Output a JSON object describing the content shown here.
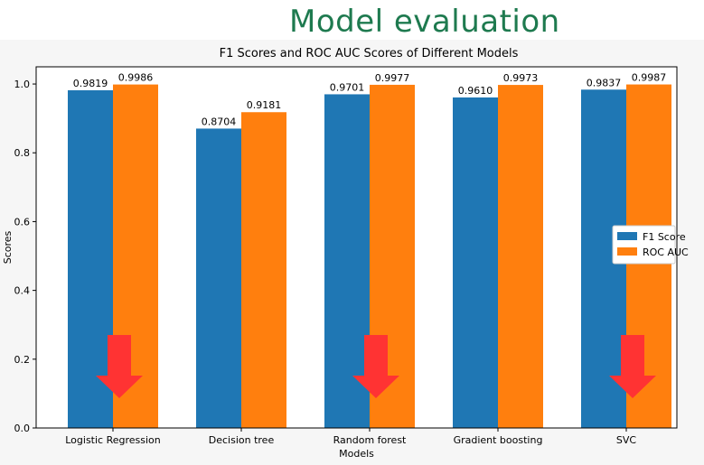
{
  "slide": {
    "title": "Model evaluation"
  },
  "colors": {
    "f1": "#1f77b4",
    "roc": "#ff7f0e",
    "arrow": "#ff3333",
    "title": "#1e7a4f"
  },
  "annotations": {
    "arrows_at_categories": [
      "Logistic Regression",
      "Random forest",
      "SVC"
    ],
    "arrow_icon": "red-down-arrow-icon"
  },
  "chart_data": {
    "type": "bar",
    "title": "F1 Scores and ROC AUC Scores of Different Models",
    "xlabel": "Models",
    "ylabel": "Scores",
    "ylim": [
      0,
      1.05
    ],
    "yticks": [
      "0.0",
      "0.2",
      "0.4",
      "0.6",
      "0.8",
      "1.0"
    ],
    "ytick_values": [
      0,
      0.2,
      0.4,
      0.6,
      0.8,
      1.0
    ],
    "categories": [
      "Logistic Regression",
      "Decision tree",
      "Random forest",
      "Gradient boosting",
      "SVC"
    ],
    "series": [
      {
        "name": "F1 Score",
        "values": [
          0.9819,
          0.8704,
          0.9701,
          0.961,
          0.9837
        ],
        "labels": [
          "0.9819",
          "0.8704",
          "0.9701",
          "0.9610",
          "0.9837"
        ]
      },
      {
        "name": "ROC AUC",
        "values": [
          0.9986,
          0.9181,
          0.9977,
          0.9973,
          0.9987
        ],
        "labels": [
          "0.9986",
          "0.9181",
          "0.9977",
          "0.9973",
          "0.9987"
        ]
      }
    ],
    "legend": "right",
    "grid": false
  }
}
